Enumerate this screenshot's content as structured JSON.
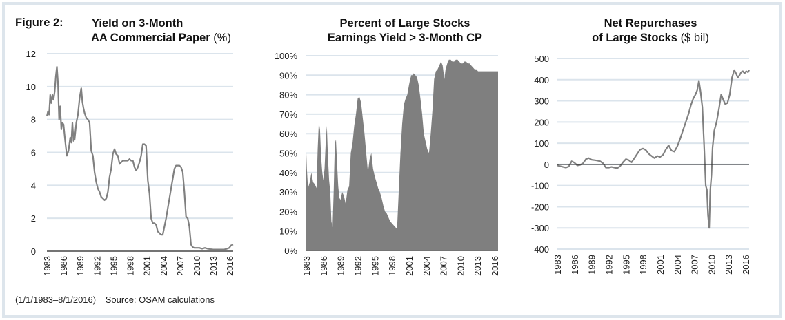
{
  "figure": {
    "label": "Figure 2:",
    "footer_period": "(1/1/1983–8/1/2016)",
    "footer_source": "Source: OSAM calculations",
    "colors": {
      "line": "#808080",
      "area": "#7f7f7f",
      "grid": "#dbe4ec",
      "axis": "#222222",
      "frame": "#dde5ec"
    }
  },
  "chart_data": [
    {
      "type": "line",
      "title_line1": "Yield on 3-Month",
      "title_line2": "AA Commercial Paper",
      "title_unit": "(%)",
      "xlabel": "",
      "ylabel": "",
      "ylim": [
        0,
        12
      ],
      "yticks": [
        0,
        2,
        4,
        6,
        8,
        10,
        12
      ],
      "ytick_labels": [
        "0",
        "2",
        "4",
        "6",
        "8",
        "10",
        "12"
      ],
      "xlim": [
        1983,
        2016.6
      ],
      "xticks": [
        1983,
        1986,
        1989,
        1992,
        1995,
        1998,
        2001,
        2004,
        2007,
        2010,
        2013,
        2016
      ],
      "xtick_labels": [
        "1983",
        "1986",
        "1989",
        "1992",
        "1995",
        "1998",
        "2001",
        "2004",
        "2007",
        "2010",
        "2013",
        "2016"
      ],
      "grid": true,
      "x": [
        1983.0,
        1983.2,
        1983.4,
        1983.6,
        1983.8,
        1984.0,
        1984.2,
        1984.4,
        1984.6,
        1984.8,
        1985.0,
        1985.2,
        1985.4,
        1985.6,
        1985.8,
        1986.0,
        1986.3,
        1986.6,
        1986.9,
        1987.2,
        1987.4,
        1987.6,
        1987.8,
        1988.0,
        1988.3,
        1988.6,
        1988.9,
        1989.2,
        1989.4,
        1989.6,
        1989.8,
        1990.1,
        1990.4,
        1990.7,
        1991.0,
        1991.3,
        1991.6,
        1991.9,
        1992.2,
        1992.5,
        1992.8,
        1993.1,
        1993.4,
        1993.7,
        1994.0,
        1994.3,
        1994.6,
        1994.9,
        1995.2,
        1995.5,
        1995.8,
        1996.1,
        1996.4,
        1996.7,
        1997.0,
        1997.3,
        1997.6,
        1997.9,
        1998.2,
        1998.5,
        1998.8,
        1999.1,
        1999.4,
        1999.7,
        2000.0,
        2000.3,
        2000.6,
        2000.9,
        2001.2,
        2001.5,
        2001.8,
        2002.1,
        2002.4,
        2002.7,
        2003.0,
        2003.3,
        2003.6,
        2003.9,
        2004.2,
        2004.5,
        2004.8,
        2005.1,
        2005.4,
        2005.7,
        2006.0,
        2006.3,
        2006.6,
        2006.9,
        2007.2,
        2007.5,
        2007.8,
        2008.1,
        2008.4,
        2008.7,
        2009.0,
        2009.3,
        2009.6,
        2010.0,
        2010.5,
        2011.0,
        2011.5,
        2012.0,
        2012.5,
        2013.0,
        2013.5,
        2014.0,
        2014.5,
        2015.0,
        2015.5,
        2015.9,
        2016.2,
        2016.6
      ],
      "values": [
        8.2,
        8.5,
        8.3,
        9.5,
        9.0,
        9.5,
        9.2,
        9.7,
        10.6,
        11.2,
        10.2,
        8.0,
        8.8,
        7.4,
        7.8,
        7.7,
        6.7,
        5.8,
        6.1,
        6.9,
        6.6,
        7.8,
        6.7,
        6.8,
        7.8,
        8.3,
        9.3,
        9.9,
        9.1,
        8.7,
        8.4,
        8.1,
        8.0,
        7.8,
        6.1,
        5.8,
        4.8,
        4.2,
        3.8,
        3.6,
        3.3,
        3.2,
        3.1,
        3.2,
        3.6,
        4.5,
        5.0,
        5.9,
        6.2,
        5.9,
        5.8,
        5.3,
        5.4,
        5.5,
        5.5,
        5.5,
        5.5,
        5.6,
        5.5,
        5.5,
        5.1,
        4.9,
        5.1,
        5.4,
        5.8,
        6.5,
        6.5,
        6.4,
        4.3,
        3.5,
        2.0,
        1.7,
        1.7,
        1.6,
        1.2,
        1.1,
        1.0,
        1.0,
        1.5,
        2.0,
        2.6,
        3.2,
        3.8,
        4.4,
        5.0,
        5.2,
        5.2,
        5.2,
        5.1,
        4.8,
        3.6,
        2.1,
        2.0,
        1.5,
        0.4,
        0.25,
        0.2,
        0.2,
        0.2,
        0.15,
        0.2,
        0.15,
        0.12,
        0.1,
        0.1,
        0.1,
        0.1,
        0.1,
        0.15,
        0.2,
        0.35,
        0.4
      ]
    },
    {
      "type": "area",
      "title_line1": "Percent of Large Stocks",
      "title_line2": "Earnings Yield > 3-Month CP",
      "title_unit": "",
      "xlabel": "",
      "ylabel": "",
      "ylim": [
        0,
        100
      ],
      "yticks": [
        0,
        10,
        20,
        30,
        40,
        50,
        60,
        70,
        80,
        90,
        100
      ],
      "ytick_labels": [
        "0%",
        "10%",
        "20%",
        "30%",
        "40%",
        "50%",
        "60%",
        "70%",
        "80%",
        "90%",
        "100%"
      ],
      "xlim": [
        1983,
        2016.6
      ],
      "xticks": [
        1983,
        1986,
        1989,
        1992,
        1995,
        1998,
        2001,
        2004,
        2007,
        2010,
        2013,
        2016
      ],
      "xtick_labels": [
        "1983",
        "1986",
        "1989",
        "1992",
        "1995",
        "1998",
        "2001",
        "2004",
        "2007",
        "2010",
        "2013",
        "2016"
      ],
      "grid": true,
      "x": [
        1983.0,
        1983.1,
        1983.3,
        1983.6,
        1983.9,
        1984.2,
        1984.5,
        1984.8,
        1985.0,
        1985.2,
        1985.4,
        1985.6,
        1985.8,
        1986.0,
        1986.2,
        1986.4,
        1986.6,
        1986.8,
        1987.0,
        1987.2,
        1987.4,
        1987.6,
        1987.8,
        1988.0,
        1988.2,
        1988.4,
        1988.6,
        1988.8,
        1989.0,
        1989.3,
        1989.6,
        1989.9,
        1990.2,
        1990.5,
        1990.8,
        1991.1,
        1991.4,
        1991.7,
        1992.0,
        1992.3,
        1992.6,
        1992.9,
        1993.2,
        1993.5,
        1993.8,
        1994.1,
        1994.4,
        1994.7,
        1995.0,
        1995.3,
        1995.6,
        1995.9,
        1996.2,
        1996.5,
        1996.8,
        1997.1,
        1997.4,
        1997.7,
        1998.0,
        1998.3,
        1998.6,
        1998.9,
        1999.2,
        1999.5,
        1999.8,
        2000.1,
        2000.4,
        2000.7,
        2001.0,
        2001.2,
        2001.4,
        2001.6,
        2001.8,
        2002.1,
        2002.4,
        2002.7,
        2003.0,
        2003.3,
        2003.6,
        2003.9,
        2004.2,
        2004.5,
        2004.8,
        2005.1,
        2005.4,
        2005.7,
        2006.0,
        2006.3,
        2006.6,
        2006.9,
        2007.2,
        2007.4,
        2007.6,
        2007.8,
        2008.0,
        2008.3,
        2008.6,
        2008.9,
        2009.2,
        2009.5,
        2009.8,
        2010.1,
        2010.4,
        2010.7,
        2011.0,
        2011.3,
        2011.6,
        2011.9,
        2012.2,
        2012.5,
        2012.8,
        2013.1,
        2013.4,
        2013.7,
        2014.0,
        2014.3,
        2014.6,
        2014.9,
        2015.2,
        2015.5,
        2015.8,
        2016.1,
        2016.4,
        2016.6
      ],
      "values": [
        50,
        42,
        32,
        35,
        40,
        35,
        34,
        32,
        52,
        66,
        62,
        48,
        40,
        36,
        42,
        55,
        64,
        48,
        36,
        30,
        15,
        12,
        30,
        55,
        57,
        44,
        33,
        27,
        26,
        30,
        28,
        24,
        31,
        33,
        50,
        55,
        64,
        70,
        78,
        79,
        76,
        68,
        60,
        50,
        40,
        47,
        50,
        42,
        38,
        35,
        32,
        30,
        27,
        23,
        20,
        19,
        17,
        15,
        14,
        13,
        12,
        11,
        30,
        50,
        65,
        75,
        78,
        80,
        85,
        88,
        90,
        90,
        91,
        90,
        89,
        85,
        78,
        70,
        60,
        56,
        52,
        50,
        60,
        72,
        88,
        92,
        93,
        95,
        97,
        95,
        88,
        93,
        95,
        97,
        98,
        98,
        97,
        97,
        98,
        98,
        97,
        96,
        96,
        97,
        97,
        96,
        96,
        95,
        94,
        93,
        93,
        92,
        92,
        92,
        92,
        92,
        92,
        92,
        92,
        92,
        92,
        92,
        92,
        92
      ],
      "ytick_format": "percent"
    },
    {
      "type": "line",
      "title_line1": "Net Repurchases",
      "title_line2": "of Large Stocks",
      "title_unit": "($ bil)",
      "xlabel": "",
      "ylabel": "",
      "ylim": [
        -400,
        500
      ],
      "yticks": [
        -400,
        -300,
        -200,
        -100,
        0,
        100,
        200,
        300,
        400,
        500
      ],
      "ytick_labels": [
        "-400",
        "-300",
        "-200",
        "-100",
        "0",
        "100",
        "200",
        "300",
        "400",
        "500"
      ],
      "xlim": [
        1983,
        2016.6
      ],
      "xticks": [
        1983,
        1986,
        1989,
        1992,
        1995,
        1998,
        2001,
        2004,
        2007,
        2010,
        2013,
        2016
      ],
      "xtick_labels": [
        "1983",
        "1986",
        "1989",
        "1992",
        "1995",
        "1998",
        "2001",
        "2004",
        "2007",
        "2010",
        "2013",
        "2016"
      ],
      "grid": true,
      "zero_line": true,
      "x": [
        1983.0,
        1983.5,
        1984.0,
        1984.5,
        1985.0,
        1985.5,
        1986.0,
        1986.5,
        1987.0,
        1987.5,
        1988.0,
        1988.5,
        1989.0,
        1989.5,
        1990.0,
        1990.5,
        1991.0,
        1991.5,
        1992.0,
        1992.5,
        1993.0,
        1993.5,
        1994.0,
        1994.5,
        1995.0,
        1995.5,
        1996.0,
        1996.5,
        1997.0,
        1997.5,
        1998.0,
        1998.5,
        1999.0,
        1999.5,
        2000.0,
        2000.5,
        2001.0,
        2001.5,
        2002.0,
        2002.5,
        2003.0,
        2003.5,
        2004.0,
        2004.5,
        2005.0,
        2005.5,
        2006.0,
        2006.4,
        2006.8,
        2007.2,
        2007.5,
        2007.8,
        2008.1,
        2008.4,
        2008.7,
        2009.0,
        2009.2,
        2009.4,
        2009.6,
        2009.8,
        2010.0,
        2010.2,
        2010.5,
        2010.9,
        2011.3,
        2011.7,
        2012.0,
        2012.4,
        2012.8,
        2013.2,
        2013.6,
        2014.0,
        2014.3,
        2014.6,
        2014.9,
        2015.2,
        2015.5,
        2015.8,
        2016.1,
        2016.4,
        2016.6
      ],
      "values": [
        -5,
        -8,
        -12,
        -15,
        -10,
        15,
        8,
        -5,
        -2,
        5,
        25,
        30,
        22,
        20,
        18,
        15,
        5,
        -15,
        -15,
        -12,
        -15,
        -18,
        -8,
        10,
        25,
        20,
        10,
        30,
        50,
        70,
        75,
        68,
        50,
        40,
        30,
        40,
        35,
        45,
        70,
        90,
        65,
        60,
        85,
        120,
        160,
        200,
        240,
        280,
        310,
        330,
        350,
        395,
        340,
        270,
        100,
        -100,
        -120,
        -240,
        -300,
        -120,
        -50,
        80,
        160,
        200,
        260,
        330,
        310,
        285,
        290,
        330,
        410,
        445,
        430,
        410,
        420,
        435,
        440,
        430,
        440,
        435,
        445
      ]
    }
  ]
}
